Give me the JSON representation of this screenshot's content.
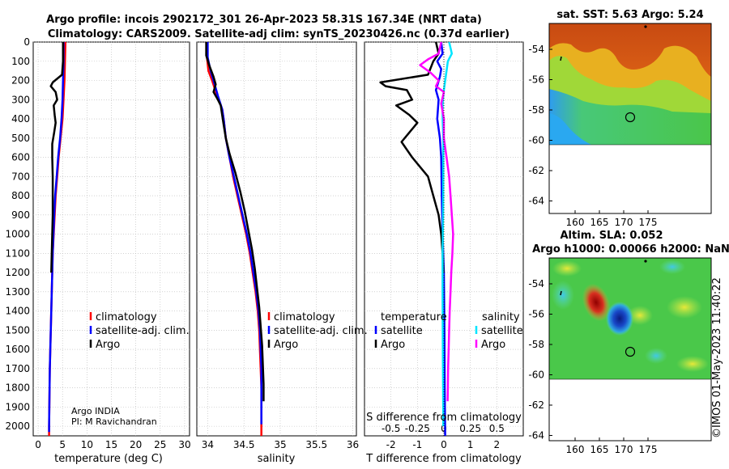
{
  "header": {
    "title_line1": "Argo profile: incois 2902172_301 26-Apr-2023 58.31S 167.34E (NRT data)",
    "title_line2": "Climatology: CARS2009. Satellite-adj clim: synTS_20230426.nc (0.37d earlier)"
  },
  "colors": {
    "climatology": "#ff0000",
    "satellite_adj": "#0000ff",
    "argo": "#000000",
    "sat_temp": "#0000ff",
    "sat_sal": "#00e5ff",
    "argo_sal": "#ff00ff"
  },
  "depth_axis": {
    "ylim": [
      0,
      2050
    ],
    "ticks": [
      0,
      100,
      200,
      300,
      400,
      500,
      600,
      700,
      800,
      900,
      1000,
      1100,
      1200,
      1300,
      1400,
      1500,
      1600,
      1700,
      1800,
      1900,
      2000
    ]
  },
  "chart_data": [
    {
      "id": "temperature",
      "type": "line",
      "xlabel": "temperature (deg C)",
      "xlim": [
        -1,
        31
      ],
      "xticks": [
        0,
        5,
        10,
        15,
        20,
        25,
        30
      ],
      "xtick_labels": [
        "0",
        "5",
        "10",
        "15",
        "20",
        "25",
        "30"
      ],
      "legend": [
        "climatology",
        "satellite-adj. clim.",
        "Argo"
      ],
      "annotation": [
        "Argo INDIA",
        "PI: M Ravichandran"
      ],
      "series": [
        {
          "name": "climatology",
          "color_key": "climatology",
          "width": 2.5,
          "points": [
            [
              5.6,
              0
            ],
            [
              5.5,
              100
            ],
            [
              5.4,
              200
            ],
            [
              5.2,
              300
            ],
            [
              5.0,
              400
            ],
            [
              4.6,
              500
            ],
            [
              4.2,
              600
            ],
            [
              3.9,
              700
            ],
            [
              3.6,
              800
            ],
            [
              3.4,
              900
            ],
            [
              3.2,
              1000
            ],
            [
              3.0,
              1100
            ],
            [
              2.9,
              1200
            ],
            [
              2.8,
              1300
            ],
            [
              2.7,
              1400
            ],
            [
              2.6,
              1500
            ],
            [
              2.5,
              1600
            ],
            [
              2.4,
              1700
            ],
            [
              2.35,
              1800
            ],
            [
              2.3,
              1900
            ],
            [
              2.25,
              2000
            ],
            [
              2.25,
              2050
            ]
          ]
        },
        {
          "name": "satellite-adj. clim.",
          "color_key": "satellite_adj",
          "width": 2.5,
          "points": [
            [
              5.2,
              0
            ],
            [
              5.2,
              100
            ],
            [
              5.1,
              200
            ],
            [
              5.0,
              300
            ],
            [
              4.8,
              400
            ],
            [
              4.5,
              500
            ],
            [
              4.1,
              600
            ],
            [
              3.8,
              700
            ],
            [
              3.5,
              800
            ],
            [
              3.3,
              900
            ],
            [
              3.15,
              1000
            ],
            [
              3.0,
              1100
            ],
            [
              2.9,
              1200
            ],
            [
              2.8,
              1300
            ],
            [
              2.7,
              1400
            ],
            [
              2.6,
              1500
            ],
            [
              2.5,
              1600
            ],
            [
              2.4,
              1700
            ],
            [
              2.35,
              1800
            ],
            [
              2.3,
              1900
            ],
            [
              2.25,
              2000
            ],
            [
              2.25,
              2030
            ]
          ]
        },
        {
          "name": "Argo",
          "color_key": "argo",
          "width": 2.5,
          "points": [
            [
              5.1,
              0
            ],
            [
              5.1,
              100
            ],
            [
              4.9,
              170
            ],
            [
              3.0,
              210
            ],
            [
              2.6,
              230
            ],
            [
              3.6,
              260
            ],
            [
              3.9,
              300
            ],
            [
              3.2,
              330
            ],
            [
              3.4,
              380
            ],
            [
              3.6,
              420
            ],
            [
              3.3,
              470
            ],
            [
              2.9,
              530
            ],
            [
              2.9,
              600
            ],
            [
              3.0,
              700
            ],
            [
              3.0,
              800
            ],
            [
              3.0,
              900
            ],
            [
              2.9,
              1000
            ],
            [
              2.8,
              1100
            ],
            [
              2.7,
              1200
            ]
          ]
        }
      ]
    },
    {
      "id": "salinity",
      "type": "line",
      "xlabel": "salinity",
      "xlim": [
        33.85,
        36.05
      ],
      "xticks": [
        34,
        34.5,
        35,
        35.5,
        36
      ],
      "xtick_labels": [
        "34",
        "34.5",
        "35",
        "35.5",
        "36"
      ],
      "legend": [
        "climatology",
        "satellite-adj. clim.",
        "Argo"
      ],
      "series": [
        {
          "name": "climatology",
          "color_key": "climatology",
          "width": 2.5,
          "points": [
            [
              33.98,
              0
            ],
            [
              33.99,
              80
            ],
            [
              34.01,
              150
            ],
            [
              34.06,
              200
            ],
            [
              34.13,
              280
            ],
            [
              34.2,
              350
            ],
            [
              34.22,
              400
            ],
            [
              34.25,
              500
            ],
            [
              34.3,
              600
            ],
            [
              34.35,
              700
            ],
            [
              34.41,
              800
            ],
            [
              34.47,
              900
            ],
            [
              34.53,
              1000
            ],
            [
              34.58,
              1100
            ],
            [
              34.62,
              1200
            ],
            [
              34.66,
              1300
            ],
            [
              34.69,
              1400
            ],
            [
              34.71,
              1500
            ],
            [
              34.72,
              1600
            ],
            [
              34.73,
              1700
            ],
            [
              34.74,
              1800
            ],
            [
              34.74,
              1900
            ],
            [
              34.74,
              2000
            ],
            [
              34.74,
              2050
            ]
          ]
        },
        {
          "name": "satellite-adj. clim.",
          "color_key": "satellite_adj",
          "width": 2.5,
          "points": [
            [
              34.0,
              0
            ],
            [
              34.0,
              80
            ],
            [
              34.04,
              150
            ],
            [
              34.08,
              200
            ],
            [
              34.14,
              280
            ],
            [
              34.2,
              350
            ],
            [
              34.22,
              400
            ],
            [
              34.25,
              500
            ],
            [
              34.3,
              600
            ],
            [
              34.36,
              700
            ],
            [
              34.42,
              800
            ],
            [
              34.48,
              900
            ],
            [
              34.54,
              1000
            ],
            [
              34.59,
              1100
            ],
            [
              34.63,
              1200
            ],
            [
              34.67,
              1300
            ],
            [
              34.7,
              1400
            ],
            [
              34.72,
              1500
            ],
            [
              34.73,
              1600
            ],
            [
              34.74,
              1700
            ],
            [
              34.74,
              1800
            ],
            [
              34.74,
              1900
            ],
            [
              34.74,
              1990
            ]
          ]
        },
        {
          "name": "Argo",
          "color_key": "argo",
          "width": 2.5,
          "points": [
            [
              33.98,
              0
            ],
            [
              33.98,
              70
            ],
            [
              34.02,
              120
            ],
            [
              34.08,
              180
            ],
            [
              34.11,
              220
            ],
            [
              34.08,
              260
            ],
            [
              34.14,
              300
            ],
            [
              34.18,
              330
            ],
            [
              34.2,
              380
            ],
            [
              34.22,
              430
            ],
            [
              34.25,
              500
            ],
            [
              34.3,
              580
            ],
            [
              34.38,
              680
            ],
            [
              34.45,
              780
            ],
            [
              34.51,
              880
            ],
            [
              34.56,
              980
            ],
            [
              34.61,
              1080
            ],
            [
              34.65,
              1180
            ],
            [
              34.68,
              1280
            ],
            [
              34.71,
              1380
            ],
            [
              34.73,
              1480
            ],
            [
              34.75,
              1580
            ],
            [
              34.76,
              1680
            ],
            [
              34.77,
              1780
            ],
            [
              34.77,
              1870
            ]
          ]
        }
      ]
    },
    {
      "id": "difference",
      "type": "line",
      "xlabel": "T difference from climatology",
      "xlabel2": "S difference from climatology",
      "xlim": [
        -3,
        3
      ],
      "xticks": [
        -2,
        -1,
        0,
        1,
        2
      ],
      "xtick_labels": [
        "-2",
        "-1",
        "0",
        "1",
        "2"
      ],
      "sticks": [
        -2,
        -1,
        0,
        1,
        2
      ],
      "stick_labels": [
        "-0.5",
        "-0.25",
        "0",
        "0.25",
        "0.5"
      ],
      "legend_temp_title": "temperature",
      "legend_sal_title": "salinity",
      "legend_temp": [
        "satellite",
        "Argo"
      ],
      "legend_sal": [
        "satellite",
        "Argo"
      ],
      "series": [
        {
          "name": "T satellite",
          "color_key": "sat_temp",
          "width": 2.5,
          "points": [
            [
              -0.1,
              0
            ],
            [
              -0.05,
              60
            ],
            [
              -0.25,
              100
            ],
            [
              -0.1,
              140
            ],
            [
              -0.15,
              180
            ],
            [
              -0.3,
              250
            ],
            [
              -0.2,
              300
            ],
            [
              -0.25,
              400
            ],
            [
              -0.15,
              500
            ],
            [
              -0.1,
              600
            ],
            [
              -0.08,
              800
            ],
            [
              -0.05,
              1000
            ],
            [
              0.0,
              1200
            ],
            [
              0.02,
              1500
            ],
            [
              0.03,
              1800
            ],
            [
              0.05,
              2050
            ]
          ]
        },
        {
          "name": "T Argo",
          "color_key": "argo",
          "width": 2.5,
          "points": [
            [
              -0.3,
              0
            ],
            [
              -0.2,
              60
            ],
            [
              -0.4,
              100
            ],
            [
              -0.6,
              170
            ],
            [
              -2.4,
              210
            ],
            [
              -2.2,
              230
            ],
            [
              -1.4,
              250
            ],
            [
              -1.2,
              300
            ],
            [
              -1.8,
              330
            ],
            [
              -1.3,
              380
            ],
            [
              -1.0,
              420
            ],
            [
              -1.3,
              470
            ],
            [
              -1.6,
              520
            ],
            [
              -1.2,
              600
            ],
            [
              -0.6,
              700
            ],
            [
              -0.4,
              800
            ],
            [
              -0.2,
              900
            ],
            [
              -0.1,
              1000
            ],
            [
              -0.05,
              1100
            ],
            [
              -0.02,
              1200
            ]
          ]
        },
        {
          "name": "S satellite",
          "color_key": "sat_sal",
          "width": 2.5,
          "points": [
            [
              0.2,
              0
            ],
            [
              0.3,
              60
            ],
            [
              0.15,
              100
            ],
            [
              0.1,
              150
            ],
            [
              0.0,
              250
            ],
            [
              -0.05,
              320
            ],
            [
              -0.05,
              400
            ],
            [
              -0.02,
              500
            ],
            [
              -0.02,
              700
            ],
            [
              -0.03,
              900
            ],
            [
              -0.05,
              1100
            ],
            [
              -0.05,
              1300
            ],
            [
              -0.04,
              1600
            ],
            [
              -0.03,
              1800
            ],
            [
              -0.02,
              2000
            ]
          ]
        },
        {
          "name": "S Argo",
          "color_key": "argo_sal",
          "width": 2.5,
          "points": [
            [
              -0.1,
              0
            ],
            [
              -0.2,
              60
            ],
            [
              -0.6,
              90
            ],
            [
              -0.9,
              120
            ],
            [
              -0.5,
              160
            ],
            [
              -0.2,
              200
            ],
            [
              -0.3,
              230
            ],
            [
              0.0,
              260
            ],
            [
              -0.1,
              320
            ],
            [
              0.0,
              400
            ],
            [
              0.0,
              500
            ],
            [
              0.1,
              600
            ],
            [
              0.2,
              700
            ],
            [
              0.25,
              800
            ],
            [
              0.3,
              900
            ],
            [
              0.35,
              1000
            ],
            [
              0.32,
              1100
            ],
            [
              0.28,
              1200
            ],
            [
              0.25,
              1300
            ],
            [
              0.22,
              1400
            ],
            [
              0.2,
              1500
            ],
            [
              0.18,
              1600
            ],
            [
              0.16,
              1700
            ],
            [
              0.15,
              1800
            ],
            [
              0.14,
              1870
            ]
          ]
        }
      ]
    }
  ],
  "maps": {
    "sst": {
      "title": "sat. SST: 5.63 Argo: 5.24",
      "ytick_labels": [
        "-54",
        "-56",
        "-58",
        "-60",
        "-62",
        "-64"
      ],
      "xtick_labels": [
        "160",
        "165",
        "170",
        "175"
      ]
    },
    "sla": {
      "title1": "Altim. SLA: 0.052",
      "title2": "Argo h1000: 0.00066 h2000: NaN",
      "ytick_labels": [
        "-54",
        "-56",
        "-58",
        "-60",
        "-62",
        "-64"
      ],
      "xtick_labels": [
        "160",
        "165",
        "170",
        "175"
      ]
    }
  },
  "footer": {
    "credit": "©IMOS 01-May-2023 11:40:22"
  }
}
